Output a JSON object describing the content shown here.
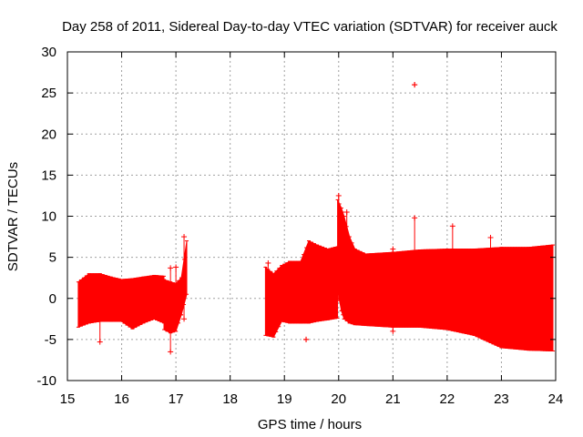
{
  "chart_data": {
    "type": "scatter",
    "title": "Day 258 of 2011, Sidereal Day-to-day VTEC variation (SDTVAR) for receiver auck",
    "xlabel": "GPS time / hours",
    "ylabel": "SDTVAR / TECUs",
    "xlim": [
      15,
      24
    ],
    "ylim": [
      -10,
      30
    ],
    "x_ticks": [
      "15",
      "16",
      "17",
      "18",
      "19",
      "20",
      "21",
      "22",
      "23",
      "24"
    ],
    "y_ticks": [
      "-10",
      "-5",
      "0",
      "5",
      "10",
      "15",
      "20",
      "25",
      "30"
    ],
    "grid": true,
    "marker": "+",
    "series_color": "#ff0000",
    "envelope_segments": [
      {
        "name": "segment-1",
        "points": [
          [
            15.2,
            2.0,
            -3.5
          ],
          [
            15.4,
            3.0,
            -3.0
          ],
          [
            15.6,
            3.0,
            -2.8
          ],
          [
            15.8,
            2.6,
            -2.8
          ],
          [
            16.0,
            2.3,
            -2.8
          ],
          [
            16.2,
            2.4,
            -3.7
          ],
          [
            16.4,
            2.6,
            -3.0
          ],
          [
            16.6,
            2.8,
            -2.5
          ],
          [
            16.78,
            2.7,
            -3.0
          ]
        ]
      },
      {
        "name": "segment-2",
        "points": [
          [
            16.78,
            2.3,
            -3.8
          ],
          [
            16.9,
            2.0,
            -4.2
          ],
          [
            17.0,
            1.8,
            -4.0
          ],
          [
            17.1,
            2.5,
            -2.0
          ],
          [
            17.2,
            7.0,
            0.5
          ]
        ]
      },
      {
        "name": "segment-3",
        "points": [
          [
            18.65,
            3.8,
            -4.5
          ],
          [
            18.8,
            3.0,
            -4.7
          ],
          [
            18.95,
            4.0,
            -2.8
          ],
          [
            19.1,
            4.5,
            -3.0
          ],
          [
            19.3,
            4.5,
            -3.0
          ],
          [
            19.45,
            7.0,
            -3.0
          ],
          [
            19.6,
            6.5,
            -2.8
          ],
          [
            19.8,
            6.0,
            -2.6
          ],
          [
            19.98,
            6.3,
            -2.4
          ]
        ]
      },
      {
        "name": "segment-4",
        "points": [
          [
            19.98,
            12.0,
            1.0
          ],
          [
            20.05,
            11.0,
            -1.5
          ],
          [
            20.1,
            10.0,
            -2.5
          ],
          [
            20.2,
            7.5,
            -3.0
          ],
          [
            20.3,
            6.0,
            -3.2
          ],
          [
            20.5,
            5.4,
            -3.3
          ],
          [
            21.0,
            5.6,
            -3.5
          ],
          [
            21.5,
            5.9,
            -3.5
          ],
          [
            22.0,
            6.0,
            -3.8
          ],
          [
            22.5,
            6.0,
            -4.5
          ],
          [
            23.0,
            6.2,
            -6.0
          ],
          [
            23.5,
            6.2,
            -6.3
          ],
          [
            23.95,
            6.5,
            -6.4
          ]
        ]
      }
    ],
    "spikes": [
      {
        "x": 15.6,
        "y1": -5.3,
        "y2": 0
      },
      {
        "x": 16.9,
        "y1": -6.5,
        "y2": 3.7
      },
      {
        "x": 17.0,
        "y1": 0,
        "y2": 3.8
      },
      {
        "x": 17.15,
        "y1": -2.5,
        "y2": 7.5
      },
      {
        "x": 18.7,
        "y1": -4.3,
        "y2": 4.3
      },
      {
        "x": 19.4,
        "y1": -5.0,
        "y2": -5.0
      },
      {
        "x": 20.0,
        "y1": 0,
        "y2": 12.5
      },
      {
        "x": 20.15,
        "y1": -2.0,
        "y2": 10.5
      },
      {
        "x": 21.0,
        "y1": -4.0,
        "y2": 6.0
      },
      {
        "x": 21.4,
        "y1": 0,
        "y2": 9.8
      },
      {
        "x": 22.1,
        "y1": 0,
        "y2": 8.8
      },
      {
        "x": 22.8,
        "y1": 0,
        "y2": 7.4
      },
      {
        "x": 21.4,
        "y1": 26.0,
        "y2": 26.0
      }
    ]
  }
}
